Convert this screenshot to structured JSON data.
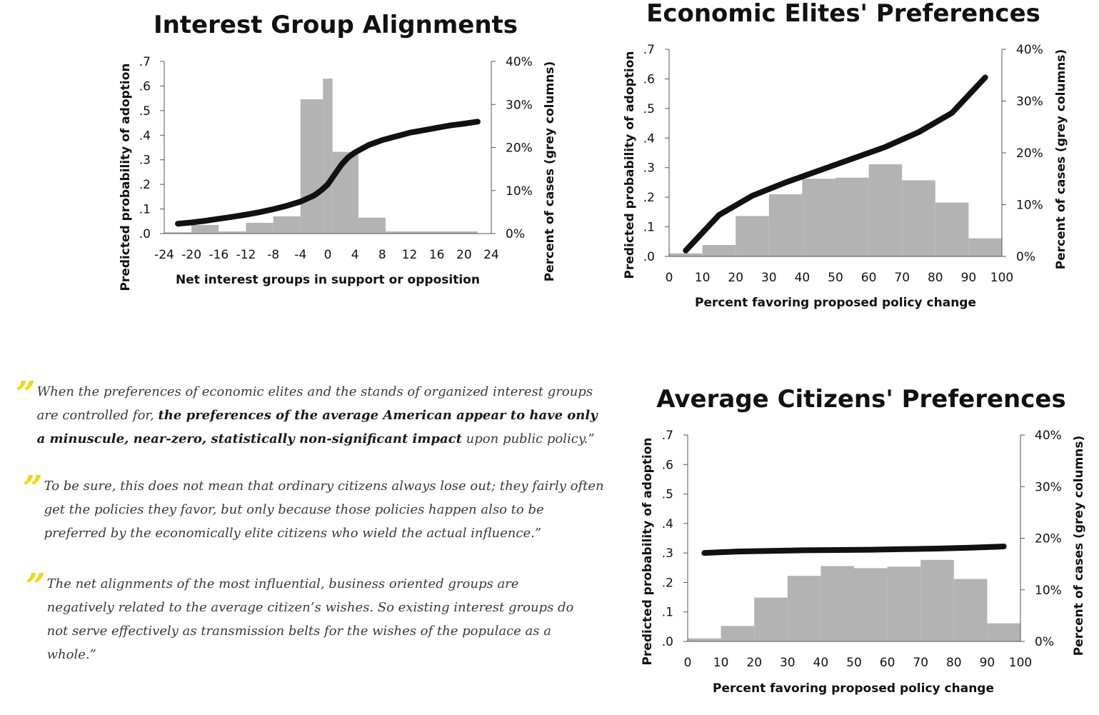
{
  "chart_data": [
    {
      "id": "interest",
      "type": "bar",
      "title": "Interest Group Alignments",
      "xlabel": "Net interest groups in support or opposition",
      "ylabel": "Predicted probability of adoption",
      "y2label": "Percent of cases (grey columns)",
      "xlim": [
        -24,
        24
      ],
      "ylim": [
        0,
        0.7
      ],
      "y2lim": [
        0,
        40
      ],
      "xticks": [
        "-24",
        "-20",
        "-16",
        "-12",
        "-8",
        "-4",
        "0",
        "4",
        "8",
        "12",
        "16",
        "20",
        "24"
      ],
      "xtick_values": [
        -24,
        -20,
        -16,
        -12,
        -8,
        -4,
        0,
        4,
        8,
        12,
        16,
        20,
        24
      ],
      "yticks": [
        ".0",
        ".1",
        ".2",
        ".3",
        ".4",
        ".5",
        ".6",
        ".7"
      ],
      "ytick_values": [
        0,
        0.1,
        0.2,
        0.3,
        0.4,
        0.5,
        0.6,
        0.7
      ],
      "y2ticks": [
        "0%",
        "10%",
        "20%",
        "30%",
        "40%"
      ],
      "y2tick_values": [
        0,
        10,
        20,
        30,
        40
      ],
      "bars": [
        {
          "x0": -24,
          "x1": -20,
          "value": 0.3
        },
        {
          "x0": -20,
          "x1": -16,
          "value": 2.0
        },
        {
          "x0": -16,
          "x1": -12,
          "value": 0.5
        },
        {
          "x0": -12,
          "x1": -8,
          "value": 2.5
        },
        {
          "x0": -8,
          "x1": -4,
          "value": 4.0
        },
        {
          "x0": -4,
          "x1": -0.7,
          "value": 31.2
        },
        {
          "x0": -0.7,
          "x1": 0.7,
          "value": 36.0
        },
        {
          "x0": 0.7,
          "x1": 4.5,
          "value": 19.0
        },
        {
          "x0": 4.5,
          "x1": 8.5,
          "value": 3.7
        },
        {
          "x0": 8.5,
          "x1": 22,
          "value": 0.5
        }
      ],
      "curve": {
        "x": [
          -22,
          -20,
          -18,
          -16,
          -14,
          -12,
          -10,
          -8,
          -6,
          -4,
          -2,
          -1,
          0,
          1,
          2,
          3,
          4,
          6,
          8,
          10,
          12,
          14,
          16,
          18,
          20,
          22
        ],
        "y": [
          0.04,
          0.045,
          0.052,
          0.06,
          0.068,
          0.077,
          0.087,
          0.099,
          0.113,
          0.13,
          0.155,
          0.175,
          0.2,
          0.24,
          0.28,
          0.31,
          0.33,
          0.36,
          0.38,
          0.395,
          0.41,
          0.42,
          0.43,
          0.44,
          0.447,
          0.455
        ]
      }
    },
    {
      "id": "elites",
      "type": "bar",
      "title": "Economic Elites' Preferences",
      "xlabel": "Percent favoring proposed policy change",
      "ylabel": "Predicted probability of adoption",
      "y2label": "Percent of cases (grey columns)",
      "xlim": [
        0,
        100
      ],
      "ylim": [
        0,
        0.7
      ],
      "y2lim": [
        0,
        40
      ],
      "xticks": [
        "0",
        "10",
        "20",
        "30",
        "40",
        "50",
        "60",
        "70",
        "80",
        "90",
        "100"
      ],
      "xtick_values": [
        0,
        10,
        20,
        30,
        40,
        50,
        60,
        70,
        80,
        90,
        100
      ],
      "yticks": [
        ".0",
        ".1",
        ".2",
        ".3",
        ".4",
        ".5",
        ".6",
        ".7"
      ],
      "ytick_values": [
        0,
        0.1,
        0.2,
        0.3,
        0.4,
        0.5,
        0.6,
        0.7
      ],
      "y2ticks": [
        "0%",
        "10%",
        "20%",
        "30%",
        "40%"
      ],
      "y2tick_values": [
        0,
        10,
        20,
        30,
        40
      ],
      "bars": [
        {
          "x0": 0,
          "x1": 10,
          "value": 0.6
        },
        {
          "x0": 10,
          "x1": 20,
          "value": 2.2
        },
        {
          "x0": 20,
          "x1": 30,
          "value": 7.8
        },
        {
          "x0": 30,
          "x1": 40,
          "value": 12.0
        },
        {
          "x0": 40,
          "x1": 50,
          "value": 15.0
        },
        {
          "x0": 50,
          "x1": 60,
          "value": 15.2
        },
        {
          "x0": 60,
          "x1": 70,
          "value": 17.8
        },
        {
          "x0": 70,
          "x1": 80,
          "value": 14.7
        },
        {
          "x0": 80,
          "x1": 90,
          "value": 10.4
        },
        {
          "x0": 90,
          "x1": 100,
          "value": 3.5
        }
      ],
      "curve": {
        "x": [
          5,
          15,
          25,
          35,
          45,
          55,
          65,
          75,
          85,
          95
        ],
        "y": [
          0.02,
          0.14,
          0.205,
          0.25,
          0.29,
          0.33,
          0.37,
          0.42,
          0.485,
          0.605
        ]
      }
    },
    {
      "id": "citizens",
      "type": "bar",
      "title": "Average Citizens' Preferences",
      "xlabel": "Percent favoring proposed policy change",
      "ylabel": "Predicted probability of adoption",
      "y2label": "Percent of cases (grey columns)",
      "xlim": [
        0,
        100
      ],
      "ylim": [
        0,
        0.7
      ],
      "y2lim": [
        0,
        40
      ],
      "xticks": [
        "0",
        "10",
        "20",
        "30",
        "40",
        "50",
        "60",
        "70",
        "80",
        "90",
        "100"
      ],
      "xtick_values": [
        0,
        10,
        20,
        30,
        40,
        50,
        60,
        70,
        80,
        90,
        100
      ],
      "yticks": [
        ".0",
        ".1",
        ".2",
        ".3",
        ".4",
        ".5",
        ".6",
        ".7"
      ],
      "ytick_values": [
        0,
        0.1,
        0.2,
        0.3,
        0.4,
        0.5,
        0.6,
        0.7
      ],
      "y2ticks": [
        "0%",
        "10%",
        "20%",
        "30%",
        "40%"
      ],
      "y2tick_values": [
        0,
        10,
        20,
        30,
        40
      ],
      "bars": [
        {
          "x0": 0,
          "x1": 10,
          "value": 0.6
        },
        {
          "x0": 10,
          "x1": 20,
          "value": 3.0
        },
        {
          "x0": 20,
          "x1": 30,
          "value": 8.5
        },
        {
          "x0": 30,
          "x1": 40,
          "value": 12.7
        },
        {
          "x0": 40,
          "x1": 50,
          "value": 14.6
        },
        {
          "x0": 50,
          "x1": 60,
          "value": 14.2
        },
        {
          "x0": 60,
          "x1": 70,
          "value": 14.5
        },
        {
          "x0": 70,
          "x1": 80,
          "value": 15.8
        },
        {
          "x0": 80,
          "x1": 90,
          "value": 12.1
        },
        {
          "x0": 90,
          "x1": 100,
          "value": 3.5
        }
      ],
      "curve": {
        "x": [
          5,
          15,
          25,
          35,
          45,
          55,
          65,
          75,
          85,
          95
        ],
        "y": [
          0.3,
          0.305,
          0.307,
          0.309,
          0.31,
          0.311,
          0.313,
          0.315,
          0.318,
          0.322
        ]
      }
    }
  ],
  "quotes": [
    {
      "mark": "”",
      "pre": "When the preferences of economic elites and the stands of organized interest groups are controlled for, ",
      "bold": "the preferences of the average American appear to have only a minuscule, near-zero, statistically non-significant impact",
      "post": " upon public policy.”"
    },
    {
      "mark": "”",
      "text": "To be sure, this does not mean that ordinary citizens always lose out; they fairly often get the policies they favor, but only because those policies happen also to be preferred by the economically elite citizens who wield the actual influence.”"
    },
    {
      "mark": "”",
      "text": "The net alignments of the most influential, business oriented groups are negatively related to the average citizen’s wishes. So existing interest groups do not serve effectively as transmission belts for the wishes of the populace as a whole.”"
    }
  ],
  "colors": {
    "bar": "#b3b3b3",
    "curve": "#111111",
    "quote_mark": "#f1d80a"
  }
}
